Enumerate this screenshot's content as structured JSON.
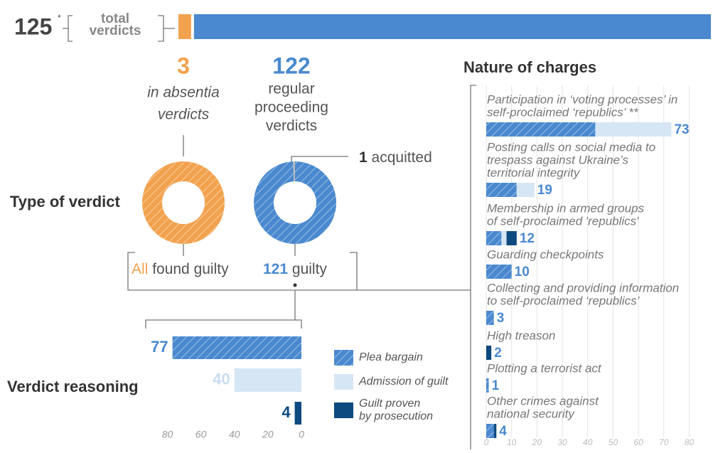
{
  "chart_data": [
    {
      "type": "bar",
      "total": 125,
      "total_mark": "*",
      "total_label": [
        "total",
        "verdicts"
      ],
      "series": [
        {
          "color": "#f2a24e",
          "value": 3,
          "lines": [
            "in absentia",
            "verdicts"
          ]
        },
        {
          "color": "#4a89cf",
          "value": 122,
          "lines": [
            "regular",
            "proceeding",
            "verdicts"
          ]
        }
      ]
    },
    {
      "type": "pie",
      "title": "Type of verdict",
      "rings": [
        {
          "colors": [
            "#f2a24e"
          ],
          "values": [
            3
          ],
          "label_lead": "All",
          "label": "found guilty"
        },
        {
          "colors": [
            "#4a89cf",
            "#b8b8b8"
          ],
          "values": [
            121,
            1
          ],
          "labels": [
            "guilty",
            "acquitted"
          ]
        }
      ]
    },
    {
      "type": "bar",
      "orientation": "horizontal",
      "title": "Verdict reasoning",
      "categories": [
        [
          "Plea bargain"
        ],
        [
          "Admission of guilt"
        ],
        [
          "Guilt proven",
          "by prosecution"
        ]
      ],
      "values": [
        77,
        40,
        4
      ],
      "colors": [
        "#4a89cf",
        "#d6e6f5",
        "#0d4a80"
      ],
      "xlim": [
        90,
        0
      ],
      "xticks": [
        80,
        60,
        40,
        20,
        0
      ]
    },
    {
      "type": "stacked-bar",
      "orientation": "horizontal",
      "title": "Nature of charges",
      "categories": [
        [
          "Participation in ‘voting processes’ in",
          "self-proclaimed ‘republics’ **"
        ],
        [
          "Posting calls on social media to",
          "trespass against Ukraine’s",
          "territorial integrity"
        ],
        [
          "Membership in armed groups",
          "of self-proclaimed 'republics'"
        ],
        [
          "Guarding checkpoints"
        ],
        [
          "Collecting and providing information",
          "to self-proclaimed ‘republics’"
        ],
        [
          "High treason"
        ],
        [
          "Plotting a terrorist act"
        ],
        [
          "Other crimes against",
          "national security"
        ]
      ],
      "series": [
        {
          "color": "#4a89cf",
          "values": [
            43,
            12,
            6,
            10,
            3,
            0,
            1,
            3
          ]
        },
        {
          "color": "#d6e6f5",
          "values": [
            30,
            7,
            2,
            0,
            0,
            0,
            0,
            0
          ]
        },
        {
          "color": "#0d4a80",
          "values": [
            0,
            0,
            4,
            0,
            0,
            2,
            0,
            1
          ]
        }
      ],
      "totals": [
        73,
        19,
        12,
        10,
        3,
        2,
        1,
        4
      ],
      "xlim": [
        0,
        88
      ],
      "xticks": [
        0,
        10,
        20,
        30,
        40,
        50,
        60,
        70,
        80
      ],
      "grid": true
    }
  ]
}
